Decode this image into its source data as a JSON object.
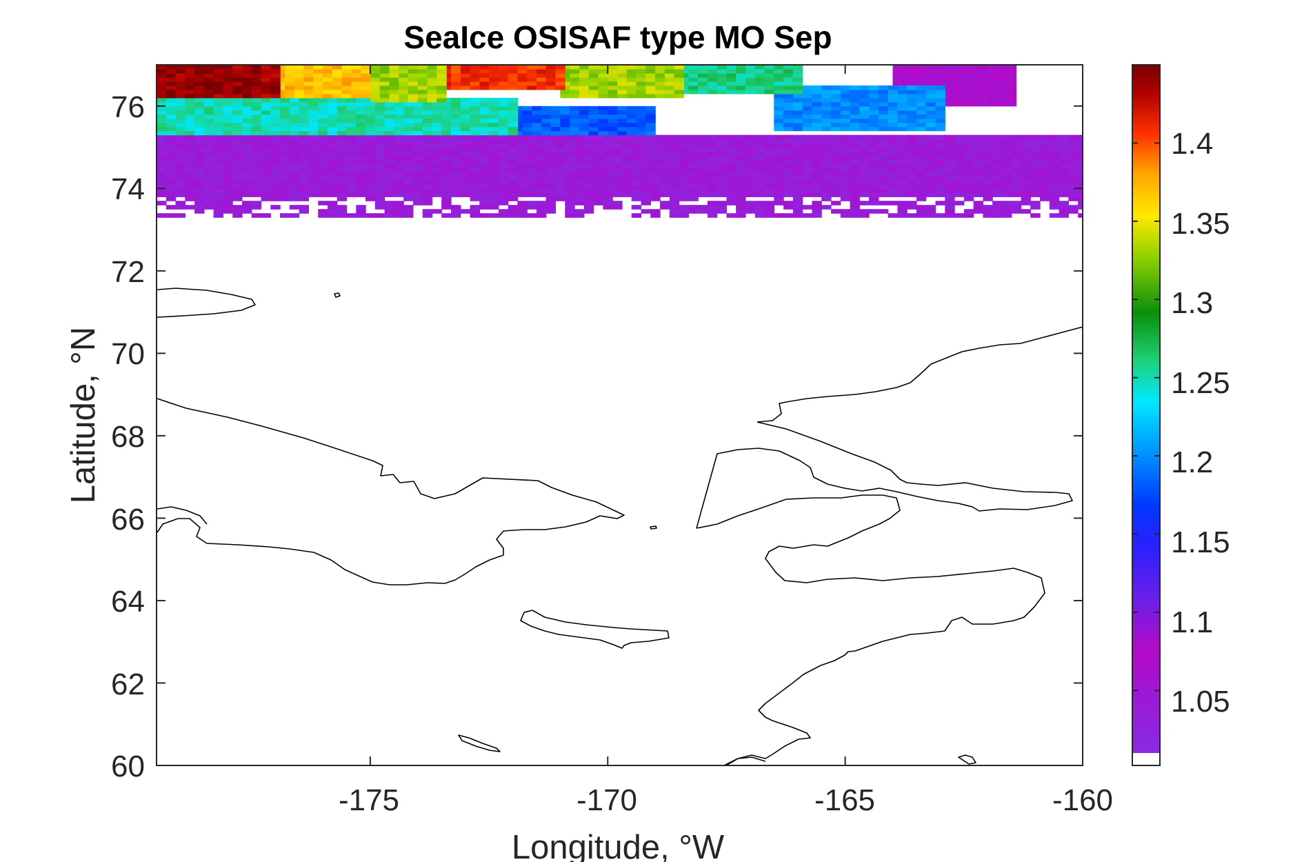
{
  "chart_data": {
    "type": "heatmap",
    "title": "SeaIce OSISAF type MO Sep",
    "xlabel": "Longitude, °W",
    "ylabel": "Latitude, °N",
    "xlim": [
      -179.5,
      -160
    ],
    "ylim": [
      60,
      77
    ],
    "xticks": [
      -175,
      -170,
      -165,
      -160
    ],
    "xtick_labels": [
      "-175",
      "-170",
      "-165",
      "-160"
    ],
    "yticks": [
      60,
      62,
      64,
      66,
      68,
      70,
      72,
      74,
      76
    ],
    "ytick_labels": [
      "60",
      "62",
      "64",
      "66",
      "68",
      "70",
      "72",
      "74",
      "76"
    ],
    "colorbar": {
      "colormap": "jet-like (purple → blue → cyan → green → yellow → red → dark red)",
      "clim": [
        1.01,
        1.45
      ],
      "ticks": [
        1.05,
        1.1,
        1.15,
        1.2,
        1.25,
        1.3,
        1.35,
        1.4
      ],
      "tick_labels": [
        "1.05",
        "1.1",
        "1.15",
        "1.2",
        "1.25",
        "1.3",
        "1.35",
        "1.4"
      ],
      "nan_color": "#ffffff"
    },
    "field_bands": [
      {
        "lon_range": [
          -179.5,
          -177.0
        ],
        "lat_range": [
          76.2,
          77.0
        ],
        "value": 1.44
      },
      {
        "lon_range": [
          -177.0,
          -175.0
        ],
        "lat_range": [
          76.2,
          77.0
        ],
        "value": 1.37
      },
      {
        "lon_range": [
          -175.0,
          -173.5
        ],
        "lat_range": [
          76.1,
          77.0
        ],
        "value": 1.33
      },
      {
        "lon_range": [
          -173.5,
          -171.0
        ],
        "lat_range": [
          76.4,
          77.0
        ],
        "value": 1.41
      },
      {
        "lon_range": [
          -171.0,
          -168.5
        ],
        "lat_range": [
          76.2,
          77.0
        ],
        "value": 1.33
      },
      {
        "lon_range": [
          -168.5,
          -166.0
        ],
        "lat_range": [
          76.3,
          77.0
        ],
        "value": 1.26
      },
      {
        "lon_range": [
          -179.5,
          -172.0
        ],
        "lat_range": [
          75.3,
          76.2
        ],
        "value": 1.25
      },
      {
        "lon_range": [
          -172.0,
          -169.0
        ],
        "lat_range": [
          75.3,
          76.0
        ],
        "value": 1.18
      },
      {
        "lon_range": [
          -166.5,
          -163.0
        ],
        "lat_range": [
          75.4,
          76.5
        ],
        "value": 1.2
      },
      {
        "lon_range": [
          -164.0,
          -161.5
        ],
        "lat_range": [
          76.0,
          77.0
        ],
        "value": 1.07
      },
      {
        "lon_range": [
          -179.5,
          -160.0
        ],
        "lat_range": [
          73.3,
          75.3
        ],
        "value": 1.04
      }
    ],
    "notes": "Sea-ice field covers roughly 73.3–77°N; values increase toward the north. Coastlines of Chukotka, Alaska, St. Lawrence Island and Wrangel Island drawn in black."
  }
}
